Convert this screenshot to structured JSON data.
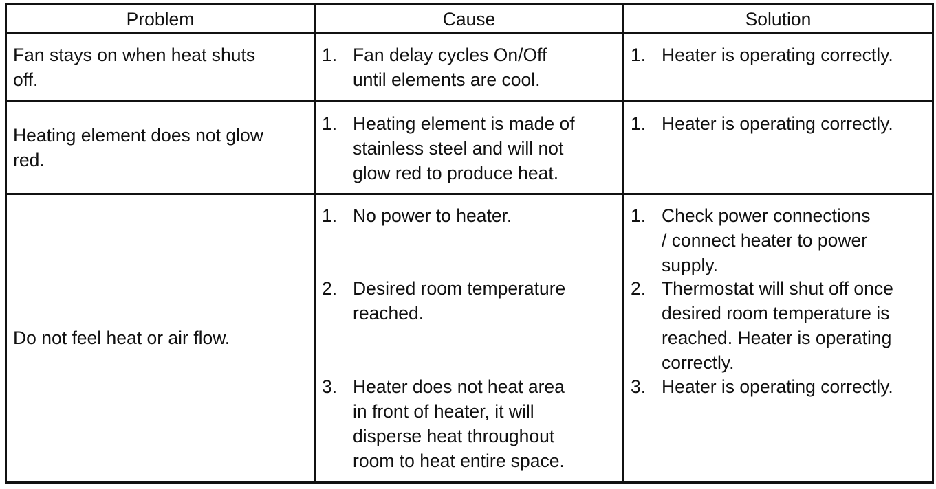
{
  "table": {
    "headers": [
      "Problem",
      "Cause",
      "Solution"
    ],
    "rows": [
      {
        "problem": [
          "Fan stays on when heat shuts",
          "off."
        ],
        "causes": [
          {
            "num": "1.",
            "lines": [
              "Fan delay cycles On/Off",
              "until elements are cool."
            ]
          }
        ],
        "solutions": [
          {
            "num": "1.",
            "lines": [
              "Heater is operating correctly."
            ]
          }
        ]
      },
      {
        "problem": [
          "Heating element does not glow",
          "red."
        ],
        "causes": [
          {
            "num": "1.",
            "lines": [
              "Heating element is made of",
              "stainless steel and will not",
              "glow red to produce heat."
            ]
          }
        ],
        "solutions": [
          {
            "num": "1.",
            "lines": [
              "Heater is operating correctly."
            ]
          }
        ]
      },
      {
        "problem": [
          "Do not feel heat or air flow."
        ],
        "causes": [
          {
            "num": "1.",
            "lines": [
              "No power to heater."
            ]
          },
          {
            "num": "2.",
            "lines": [
              "Desired room temperature",
              "reached."
            ]
          },
          {
            "num": "3.",
            "lines": [
              "Heater does not heat area",
              "in front of heater, it will",
              "disperse heat throughout",
              "room to heat entire space."
            ]
          }
        ],
        "solutions": [
          {
            "num": "1.",
            "lines": [
              "Check power connections",
              "/ connect heater to power",
              "supply."
            ]
          },
          {
            "num": "2.",
            "lines": [
              "Thermostat will shut off once",
              "desired room temperature is",
              "reached. Heater is operating",
              "correctly."
            ]
          },
          {
            "num": "3.",
            "lines": [
              "Heater is operating correctly."
            ]
          }
        ]
      }
    ]
  }
}
